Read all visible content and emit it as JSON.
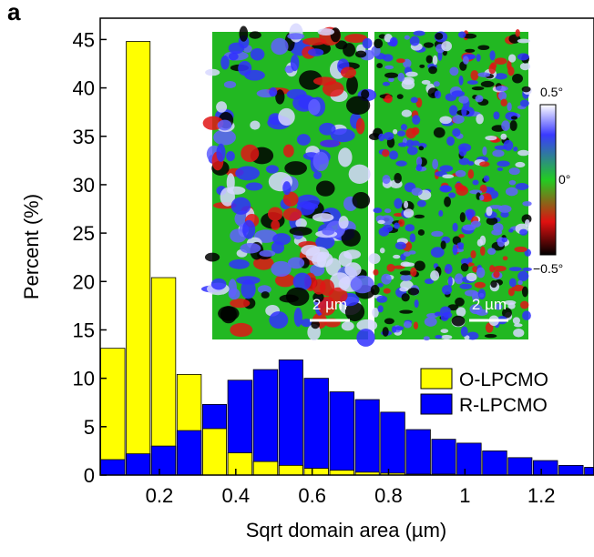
{
  "chart_data": {
    "type": "histogram",
    "panel_label": "a",
    "xlabel": "Sqrt domain area (µm)",
    "ylabel": "Percent (%)",
    "xlim": [
      0.045,
      1.338
    ],
    "ylim": [
      0,
      47.2
    ],
    "xticks": [
      0.2,
      0.4,
      0.6,
      0.8,
      1.0,
      1.2
    ],
    "yticks": [
      0,
      5,
      10,
      15,
      20,
      25,
      30,
      35,
      40,
      45
    ],
    "bins": [
      0.045,
      0.112,
      0.178,
      0.245,
      0.312,
      0.378,
      0.445,
      0.512,
      0.578,
      0.645,
      0.712,
      0.778,
      0.845,
      0.912,
      0.978,
      1.045,
      1.112,
      1.178,
      1.245,
      1.312,
      1.378
    ],
    "legend": "center-right",
    "series": [
      {
        "name": "O-LPCMO",
        "color": "#ffff00",
        "values": [
          13.1,
          44.8,
          20.4,
          10.4,
          4.8,
          2.3,
          1.4,
          1.0,
          0.7,
          0.5,
          0.3,
          0.2,
          0.1,
          0.1,
          0,
          0,
          0,
          0,
          0,
          0
        ]
      },
      {
        "name": "R-LPCMO",
        "color": "#0000ff",
        "values": [
          1.6,
          2.2,
          3.0,
          4.6,
          7.3,
          9.8,
          10.9,
          11.9,
          10.0,
          8.6,
          7.8,
          6.5,
          4.7,
          3.7,
          3.3,
          2.5,
          1.8,
          1.5,
          1.0,
          0.8
        ]
      }
    ],
    "inset": {
      "scale_bar_left": "2 µm",
      "scale_bar_right": "2 µm",
      "colorbar_top": "0.5°",
      "colorbar_mid": "0°",
      "colorbar_bottom": "−0.5°"
    }
  }
}
